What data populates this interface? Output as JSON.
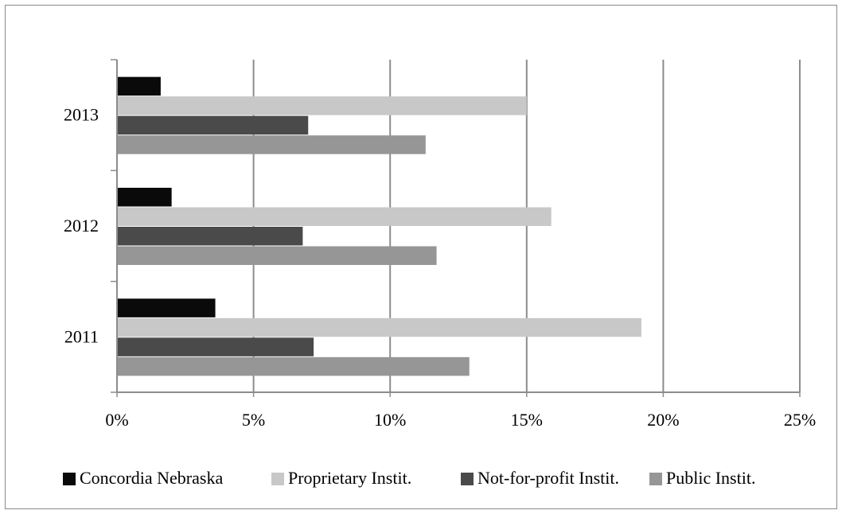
{
  "chart_data": {
    "type": "bar",
    "orientation": "horizontal",
    "categories": [
      "2011",
      "2012",
      "2013"
    ],
    "category_order": "bottom-to-top",
    "x_ticks": [
      "0%",
      "5%",
      "10%",
      "15%",
      "20%",
      "25%"
    ],
    "xlim": [
      0,
      25
    ],
    "x_unit": "%",
    "grid": "vertical major gridlines on",
    "legend_position": "bottom",
    "series": [
      {
        "name": "Concordia Nebraska",
        "color": "#0a0a0a",
        "values": [
          3.6,
          2.0,
          1.6
        ]
      },
      {
        "name": "Proprietary Instit.",
        "color": "#c8c8c8",
        "values": [
          19.2,
          15.9,
          15.0
        ]
      },
      {
        "name": "Not-for-profit Instit.",
        "color": "#4a4a4a",
        "values": [
          7.2,
          6.8,
          7.0
        ]
      },
      {
        "name": "Public Instit.",
        "color": "#969696",
        "values": [
          12.9,
          11.7,
          11.3
        ]
      }
    ],
    "title": "",
    "xlabel": "",
    "ylabel": ""
  }
}
